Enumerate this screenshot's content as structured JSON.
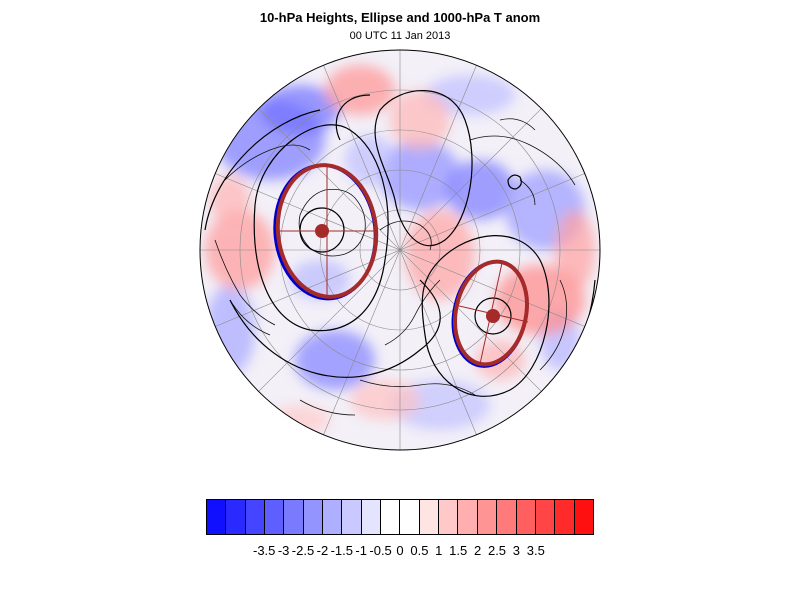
{
  "title": "10-hPa Heights, Ellipse and 1000-hPa T anom",
  "subtitle": "00 UTC 11 Jan 2013",
  "colorbar": {
    "colors": [
      "#1010ff",
      "#2a2aff",
      "#4545ff",
      "#5f5fff",
      "#7a7aff",
      "#9494ff",
      "#afafff",
      "#c9c9ff",
      "#e4e4ff",
      "#ffffff",
      "#ffffff",
      "#ffe4e4",
      "#ffc9c9",
      "#ffafaf",
      "#ff9494",
      "#ff7a7a",
      "#ff5f5f",
      "#ff4545",
      "#ff2a2a",
      "#ff1010"
    ],
    "labels": [
      "-3.5",
      "-3",
      "-2.5",
      "-2",
      "-1.5",
      "-1",
      "-0.5",
      "0",
      "0.5",
      "1",
      "1.5",
      "2",
      "2.5",
      "3",
      "3.5"
    ]
  },
  "map": {
    "projection": "orthographic, north polar",
    "ellipse_color": "#a52a2a",
    "secondary_color": "#0000cc",
    "ellipses": [
      {
        "name": "western vortex"
      },
      {
        "name": "eastern vortex"
      }
    ]
  }
}
